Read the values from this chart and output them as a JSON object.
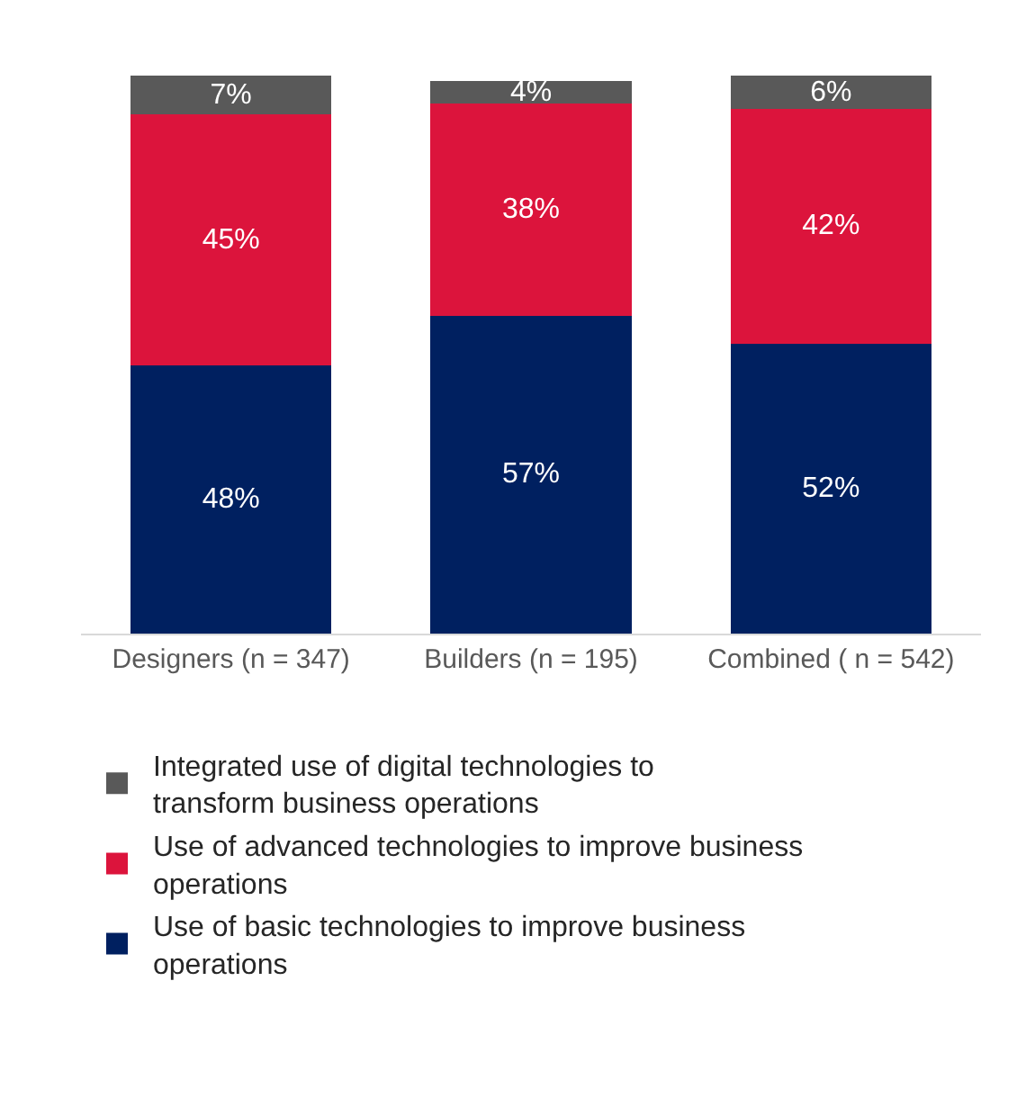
{
  "chart_data": {
    "type": "bar",
    "stacked": true,
    "legend": "bottom",
    "categories": [
      "Designers (n = 347)",
      "Builders (n = 195)",
      "Combined ( n = 542)"
    ],
    "series": [
      {
        "name": "Use of basic technologies to improve business operations",
        "color": "#002060",
        "values": [
          48,
          57,
          52
        ],
        "value_labels": [
          "48%",
          "57%",
          "52%"
        ]
      },
      {
        "name": "Use of advanced technologies to improve business operations",
        "color": "#dc143c",
        "values": [
          45,
          38,
          42
        ],
        "value_labels": [
          "45%",
          "38%",
          "42%"
        ]
      },
      {
        "name": "Integrated use of digital technologies to transform business operations",
        "color": "#595959",
        "values": [
          7,
          4,
          6
        ],
        "value_labels": [
          "7%",
          "4%",
          "6%"
        ]
      }
    ]
  }
}
